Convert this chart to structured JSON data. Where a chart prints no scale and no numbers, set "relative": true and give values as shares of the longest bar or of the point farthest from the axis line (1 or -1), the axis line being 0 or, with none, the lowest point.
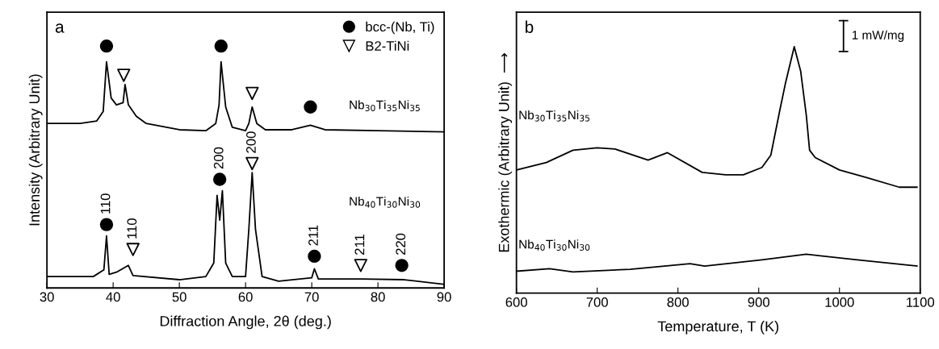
{
  "chart_data": [
    {
      "type": "line",
      "relative": true,
      "xlabel": "Diffraction Angle, 2θ (deg.)",
      "ylabel": "Intensity (Arbitrary Unit)",
      "xlim": [
        30,
        90
      ],
      "xticks": [
        30,
        40,
        50,
        60,
        70,
        80,
        90
      ],
      "tick_labels": "x",
      "legend": "top right",
      "grid": false,
      "annotations": [
        "a",
        "Nb$_{30}$Ti$_{35}$Ni$_{35}$",
        "Nb$_{40}$Ti$_{30}$Ni$_{30}$",
        {
          "text": "110",
          "x": 39.0,
          "y": 0.262
        },
        {
          "text": "200",
          "x": 56.1,
          "y": 0.449
        },
        {
          "text": "211",
          "x": 70.4,
          "y": 0.131
        },
        {
          "text": "220",
          "x": 83.6,
          "y": 0.093
        },
        {
          "text": "110",
          "x": 43.0,
          "y": 0.159
        },
        {
          "text": "200",
          "x": 61.0,
          "y": 0.514
        },
        {
          "text": "211",
          "x": 77.4,
          "y": 0.093
        }
      ],
      "series": [
        {
          "color": "#000000",
          "x": [
            30,
            35,
            37.5,
            38.5,
            39.0,
            39.7,
            40.5,
            41.5,
            41.8,
            42.3,
            43.5,
            45,
            50,
            54,
            55.5,
            56.0,
            56.3,
            57,
            58,
            60,
            60.5,
            61.0,
            61.7,
            63,
            67,
            69.8,
            72,
            80,
            90
          ],
          "values": [
            0.68,
            0.68,
            0.69,
            0.73,
            0.935,
            0.785,
            0.757,
            0.766,
            0.841,
            0.757,
            0.71,
            0.68,
            0.654,
            0.65,
            0.68,
            0.757,
            0.935,
            0.748,
            0.664,
            0.65,
            0.68,
            0.748,
            0.68,
            0.654,
            0.654,
            0.673,
            0.654,
            0.65,
            0.645
          ]
        },
        {
          "color": "#000000",
          "x": [
            30,
            37,
            38.6,
            39.0,
            39.4,
            40.5,
            42.3,
            43,
            50,
            54,
            55.2,
            55.7,
            56.1,
            56.5,
            57,
            58,
            60,
            60.5,
            61.0,
            61.5,
            62.5,
            65,
            70,
            70.4,
            71,
            77.5,
            84,
            90
          ],
          "values": [
            0.047,
            0.047,
            0.075,
            0.215,
            0.056,
            0.065,
            0.093,
            0.051,
            0.034,
            0.047,
            0.103,
            0.383,
            0.28,
            0.402,
            0.103,
            0.047,
            0.047,
            0.243,
            0.477,
            0.243,
            0.047,
            0.028,
            0.042,
            0.079,
            0.037,
            0.037,
            0.034,
            0.015
          ]
        },
        {
          "type": "scatter",
          "name": "bcc-(Nb, Ti)",
          "color": "#000000",
          "marker": "circle",
          "x": [
            39.0,
            56.3,
            69.8,
            39.0,
            56.1,
            70.4,
            83.6
          ],
          "values": [
            1,
            1,
            0.748,
            0.262,
            0.449,
            0.131,
            0.093
          ]
        },
        {
          "type": "scatter",
          "name": "B2-TiNi",
          "color": "#000000",
          "marker": "triangle",
          "x": [
            41.6,
            61.0,
            43.0,
            61.0,
            77.4
          ],
          "values": [
            0.879,
            0.804,
            0.159,
            0.514,
            0.093
          ]
        }
      ]
    },
    {
      "type": "line",
      "relative": true,
      "xlabel": "Temperature, T (K)",
      "ylabel": "Exothermic (Arbitrary Unit)  ⟶",
      "xlim": [
        600,
        1100
      ],
      "xticks": [
        600,
        700,
        800,
        900,
        1000,
        1100
      ],
      "tick_labels": "x",
      "grid": false,
      "annotations": [
        "b",
        "1 mW/mg",
        "Nb$_{30}$Ti$_{35}$Ni$_{35}$",
        "Nb$_{40}$Ti$_{30}$Ni$_{30}$"
      ],
      "series": [
        {
          "color": "#000000",
          "x": [
            600,
            637,
            670,
            700,
            722,
            763,
            787,
            830,
            859,
            881,
            904,
            915,
            926,
            933,
            944,
            952,
            959,
            963,
            970,
            1000,
            1033,
            1074,
            1096
          ],
          "values": [
            0.5,
            0.53,
            0.58,
            0.59,
            0.585,
            0.54,
            0.57,
            0.49,
            0.48,
            0.48,
            0.51,
            0.56,
            0.74,
            0.85,
            1.0,
            0.9,
            0.72,
            0.58,
            0.55,
            0.5,
            0.47,
            0.43,
            0.43
          ]
        },
        {
          "color": "#000000",
          "x": [
            600,
            641,
            670,
            741,
            815,
            833,
            904,
            959,
            1022,
            1096
          ],
          "values": [
            0.089,
            0.099,
            0.086,
            0.097,
            0.12,
            0.11,
            0.135,
            0.158,
            0.135,
            0.11
          ]
        }
      ]
    }
  ]
}
